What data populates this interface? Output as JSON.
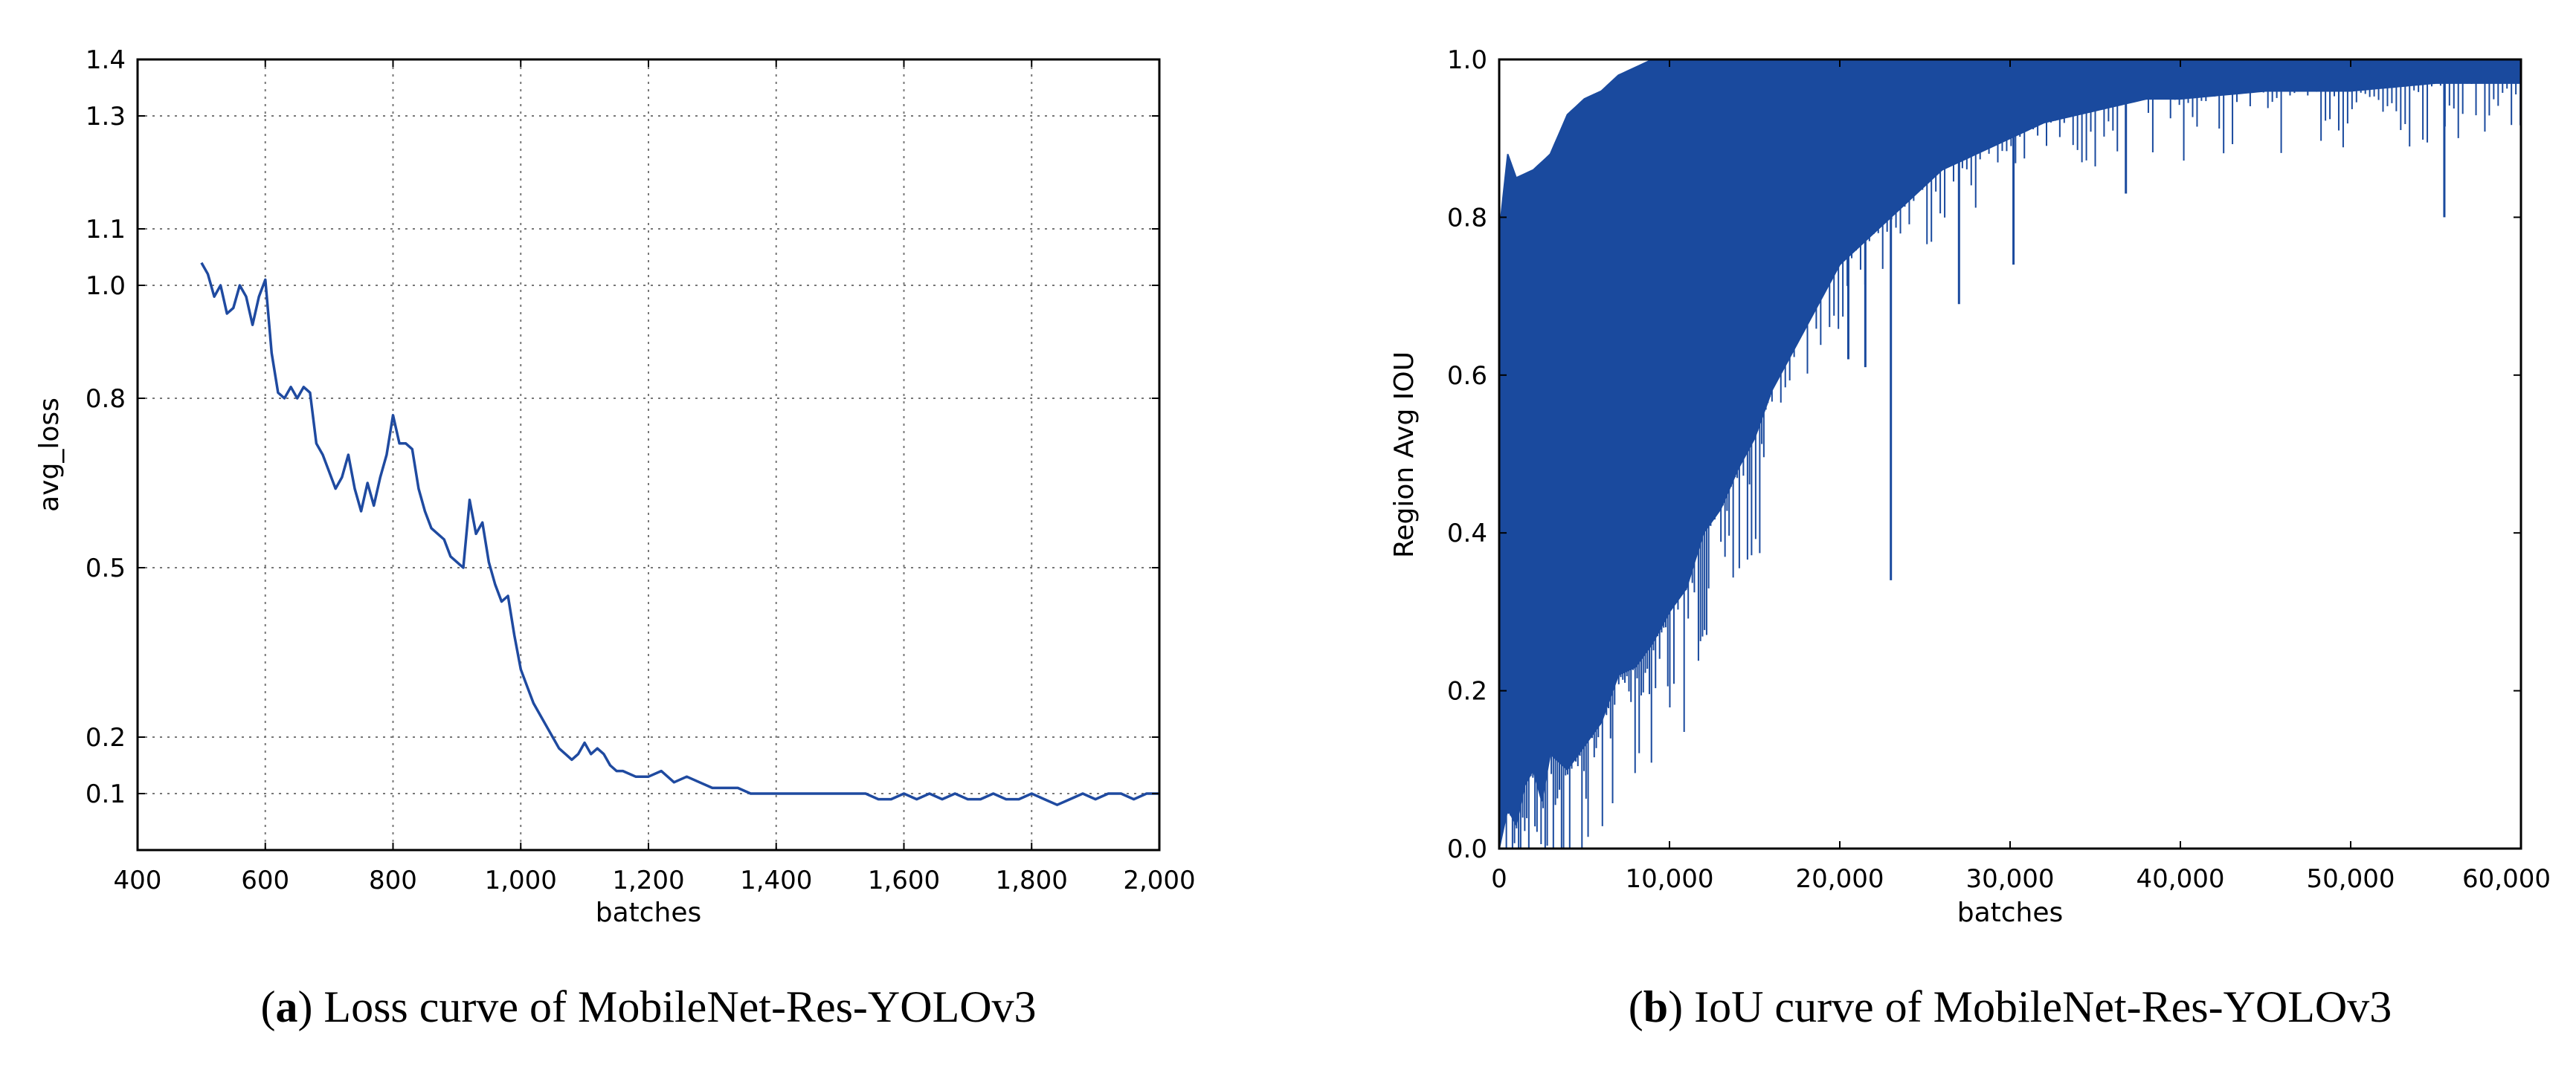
{
  "colors": {
    "line": "#1f4aa0",
    "fill": "#1a4a9e",
    "grid": "#777777"
  },
  "chart_data": [
    {
      "type": "line",
      "xlabel": "batches",
      "ylabel": "avg_loss",
      "xlim": [
        400,
        2000
      ],
      "ylim": [
        0,
        1.4
      ],
      "xticks": [
        400,
        600,
        800,
        1000,
        1200,
        1400,
        1600,
        1800,
        2000
      ],
      "xtick_labels": [
        "400",
        "600",
        "800",
        "1,000",
        "1,200",
        "1,400",
        "1,600",
        "1,800",
        "2,000"
      ],
      "yticks": [
        0.1,
        0.2,
        0.5,
        0.8,
        1.0,
        1.1,
        1.3,
        1.4
      ],
      "ytick_labels": [
        "0.1",
        "0.2",
        "0.5",
        "0.8",
        "1.0",
        "1.1",
        "1.3",
        "1.4"
      ],
      "grid": true,
      "caption": {
        "letter": "a",
        "text": "Loss curve of MobileNet-Res-YOLOv3"
      },
      "series": [
        {
          "name": "avg_loss",
          "x": [
            500,
            510,
            520,
            530,
            540,
            550,
            560,
            570,
            580,
            590,
            600,
            610,
            620,
            630,
            640,
            650,
            660,
            670,
            680,
            690,
            700,
            710,
            720,
            730,
            740,
            750,
            760,
            770,
            780,
            790,
            800,
            810,
            820,
            830,
            840,
            850,
            860,
            870,
            880,
            890,
            900,
            910,
            920,
            930,
            940,
            950,
            960,
            970,
            980,
            990,
            1000,
            1010,
            1020,
            1030,
            1040,
            1050,
            1060,
            1070,
            1080,
            1090,
            1100,
            1110,
            1120,
            1130,
            1140,
            1150,
            1160,
            1180,
            1200,
            1220,
            1240,
            1260,
            1280,
            1300,
            1320,
            1340,
            1360,
            1380,
            1400,
            1420,
            1440,
            1460,
            1480,
            1500,
            1520,
            1540,
            1560,
            1580,
            1600,
            1620,
            1640,
            1660,
            1680,
            1700,
            1720,
            1740,
            1760,
            1780,
            1800,
            1820,
            1840,
            1860,
            1880,
            1900,
            1920,
            1940,
            1960,
            1980,
            2000
          ],
          "values": [
            1.04,
            1.02,
            0.98,
            1.0,
            0.95,
            0.96,
            1.0,
            0.98,
            0.93,
            0.98,
            1.01,
            0.88,
            0.81,
            0.8,
            0.82,
            0.8,
            0.82,
            0.81,
            0.72,
            0.7,
            0.67,
            0.64,
            0.66,
            0.7,
            0.64,
            0.6,
            0.65,
            0.61,
            0.66,
            0.7,
            0.77,
            0.72,
            0.72,
            0.71,
            0.64,
            0.6,
            0.57,
            0.56,
            0.55,
            0.52,
            0.51,
            0.5,
            0.62,
            0.56,
            0.58,
            0.51,
            0.47,
            0.44,
            0.45,
            0.38,
            0.32,
            0.29,
            0.26,
            0.24,
            0.22,
            0.2,
            0.18,
            0.17,
            0.16,
            0.17,
            0.19,
            0.17,
            0.18,
            0.17,
            0.15,
            0.14,
            0.14,
            0.13,
            0.13,
            0.14,
            0.12,
            0.13,
            0.12,
            0.11,
            0.11,
            0.11,
            0.1,
            0.1,
            0.1,
            0.1,
            0.1,
            0.1,
            0.1,
            0.1,
            0.1,
            0.1,
            0.09,
            0.09,
            0.1,
            0.09,
            0.1,
            0.09,
            0.1,
            0.09,
            0.09,
            0.1,
            0.09,
            0.09,
            0.1,
            0.09,
            0.08,
            0.09,
            0.1,
            0.09,
            0.1,
            0.1,
            0.09,
            0.1,
            0.1
          ]
        }
      ]
    },
    {
      "type": "area",
      "xlabel": "batches",
      "ylabel": "Region Avg IOU",
      "xlim": [
        0,
        60000
      ],
      "ylim": [
        0,
        1.0
      ],
      "xticks": [
        0,
        10000,
        20000,
        30000,
        40000,
        50000,
        60000
      ],
      "xtick_labels": [
        "0",
        "10,000",
        "20,000",
        "30,000",
        "40,000",
        "50,000",
        "60,000"
      ],
      "yticks": [
        0.0,
        0.2,
        0.4,
        0.6,
        0.8,
        1.0
      ],
      "ytick_labels": [
        "0.0",
        "0.2",
        "0.4",
        "0.6",
        "0.8",
        "1.0"
      ],
      "grid": false,
      "caption": {
        "letter": "b",
        "text": "IoU curve of MobileNet-Res-YOLOv3"
      },
      "series": [
        {
          "name": "Region Avg IOU (lower envelope)",
          "x": [
            0,
            500,
            1000,
            1500,
            2000,
            2500,
            3000,
            4000,
            5000,
            6000,
            7000,
            8000,
            9000,
            10000,
            11000,
            12000,
            13000,
            14000,
            15000,
            16000,
            17000,
            18000,
            19000,
            20000,
            22000,
            24000,
            26000,
            28000,
            30000,
            32000,
            34000,
            36000,
            38000,
            40000,
            45000,
            50000,
            55000,
            60000
          ],
          "values": [
            0.0,
            0.05,
            0.03,
            0.08,
            0.1,
            0.06,
            0.12,
            0.1,
            0.13,
            0.16,
            0.22,
            0.23,
            0.26,
            0.3,
            0.33,
            0.4,
            0.43,
            0.48,
            0.52,
            0.58,
            0.62,
            0.66,
            0.7,
            0.74,
            0.78,
            0.82,
            0.86,
            0.88,
            0.9,
            0.92,
            0.93,
            0.94,
            0.95,
            0.95,
            0.96,
            0.96,
            0.97,
            0.97
          ]
        },
        {
          "name": "Region Avg IOU (upper envelope)",
          "x": [
            0,
            500,
            1000,
            2000,
            3000,
            4000,
            5000,
            6000,
            7000,
            8000,
            9000,
            10000,
            11000,
            12000,
            60000
          ],
          "values": [
            0.78,
            0.88,
            0.85,
            0.86,
            0.88,
            0.93,
            0.95,
            0.96,
            0.98,
            0.99,
            1.0,
            1.0,
            1.0,
            1.0,
            1.0
          ]
        },
        {
          "name": "Region Avg IOU (dips)",
          "x": [
            20500,
            21500,
            23000,
            27000,
            30200,
            36800,
            55500
          ],
          "values": [
            0.62,
            0.61,
            0.34,
            0.69,
            0.74,
            0.83,
            0.8
          ]
        }
      ]
    }
  ]
}
